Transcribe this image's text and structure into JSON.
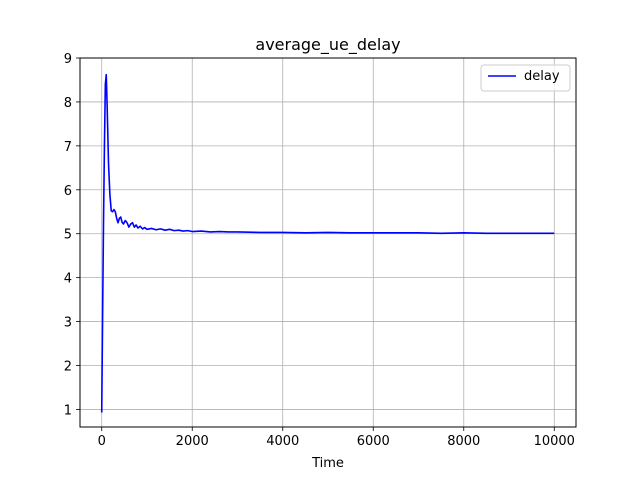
{
  "chart_data": {
    "type": "line",
    "title": "average_ue_delay",
    "xlabel": "Time",
    "ylabel": "",
    "xlim": [
      -480,
      10480
    ],
    "ylim": [
      0.6,
      9.0
    ],
    "xticks": [
      0,
      2000,
      4000,
      6000,
      8000,
      10000
    ],
    "xtick_labels": [
      "0",
      "2000",
      "4000",
      "6000",
      "8000",
      "10000"
    ],
    "yticks": [
      1,
      2,
      3,
      4,
      5,
      6,
      7,
      8,
      9
    ],
    "ytick_labels": [
      "1",
      "2",
      "3",
      "4",
      "5",
      "6",
      "7",
      "8",
      "9"
    ],
    "grid": true,
    "legend_position": "top-right",
    "series": [
      {
        "name": "delay",
        "color": "#0000ff",
        "x": [
          0,
          20,
          40,
          60,
          80,
          100,
          120,
          150,
          180,
          210,
          240,
          270,
          300,
          330,
          360,
          390,
          420,
          450,
          480,
          520,
          560,
          600,
          640,
          680,
          720,
          760,
          800,
          850,
          900,
          950,
          1000,
          1100,
          1200,
          1300,
          1400,
          1500,
          1600,
          1700,
          1800,
          1900,
          2000,
          2200,
          2400,
          2600,
          2800,
          3000,
          3500,
          4000,
          4500,
          5000,
          5500,
          6000,
          6500,
          7000,
          7500,
          8000,
          8500,
          9000,
          9500,
          10000
        ],
        "y": [
          0.93,
          3.2,
          5.3,
          7.0,
          8.4,
          8.62,
          7.9,
          6.6,
          5.9,
          5.52,
          5.5,
          5.55,
          5.5,
          5.35,
          5.25,
          5.35,
          5.38,
          5.26,
          5.22,
          5.3,
          5.25,
          5.15,
          5.22,
          5.25,
          5.15,
          5.2,
          5.13,
          5.17,
          5.11,
          5.14,
          5.1,
          5.12,
          5.09,
          5.11,
          5.08,
          5.1,
          5.07,
          5.08,
          5.06,
          5.07,
          5.05,
          5.06,
          5.04,
          5.05,
          5.04,
          5.04,
          5.03,
          5.03,
          5.02,
          5.03,
          5.02,
          5.02,
          5.02,
          5.02,
          5.01,
          5.02,
          5.01,
          5.01,
          5.01,
          5.01
        ]
      }
    ]
  }
}
